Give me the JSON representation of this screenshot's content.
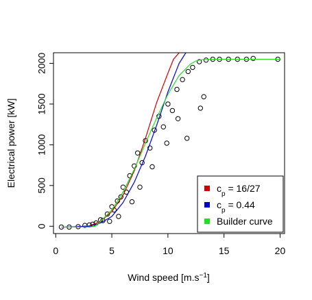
{
  "chart_data": {
    "type": "scatter",
    "xlabel": "Wind speed [m.s",
    "xlabel_superscript": "−1",
    "xlabel_suffix": "]",
    "ylabel": "Electrical power [kW]",
    "xlim": [
      -0.2,
      20.4
    ],
    "ylim": [
      -90,
      2130
    ],
    "x_ticks": [
      0,
      5,
      10,
      15,
      20
    ],
    "y_ticks": [
      0,
      500,
      1000,
      1500,
      2000
    ],
    "grid": false,
    "legend_position": "bottom-right",
    "series": [
      {
        "name": "c_p = 16/27",
        "label_base": "c",
        "label_sub": "p",
        "label_value": " = 16/27",
        "kind": "line",
        "color": "#cc0000",
        "x": [
          0.5,
          1,
          2,
          3,
          4,
          5,
          6,
          7,
          8,
          9,
          10,
          10.5,
          11.0
        ],
        "y": [
          -10,
          -10,
          -5,
          5,
          60,
          180,
          380,
          680,
          1080,
          1520,
          1880,
          2050,
          2130
        ]
      },
      {
        "name": "c_p = 0.44",
        "label_base": "c",
        "label_sub": "p",
        "label_value": " = 0.44",
        "kind": "line",
        "color": "#0000cc",
        "x": [
          0.5,
          1,
          2,
          3,
          4,
          5,
          6,
          7,
          8,
          9,
          10,
          11,
          11.6
        ],
        "y": [
          -10,
          -10,
          -5,
          0,
          40,
          120,
          290,
          540,
          860,
          1240,
          1650,
          2000,
          2130
        ]
      },
      {
        "name": "Builder curve",
        "kind": "line",
        "color": "#22dd22",
        "x": [
          0.5,
          1,
          2,
          3,
          3.5,
          4,
          5,
          6,
          7,
          8,
          9,
          10,
          11,
          12,
          12.5,
          13,
          14,
          15,
          17,
          20
        ],
        "y": [
          -10,
          -10,
          -10,
          -10,
          0,
          60,
          200,
          420,
          700,
          1020,
          1330,
          1620,
          1850,
          1990,
          2030,
          2045,
          2050,
          2050,
          2050,
          2050
        ]
      },
      {
        "name": "",
        "kind": "points",
        "color": "#000000",
        "x": [
          0.5,
          1.2,
          2.0,
          2.6,
          3.0,
          3.3,
          3.6,
          4.0,
          4.2,
          4.6,
          5.0,
          5.2,
          5.5,
          5.8,
          6.0,
          6.3,
          6.6,
          7.0,
          7.3,
          7.7,
          8.0,
          8.4,
          8.8,
          9.2,
          9.6,
          10.0,
          10.4,
          10.8,
          11.3,
          11.8,
          12.2,
          12.8,
          13.4,
          14.0,
          14.6,
          15.4,
          16.2,
          17.0,
          17.6,
          19.8,
          11.7,
          12.9,
          13.2,
          6.8,
          7.5,
          8.6,
          9.9,
          5.6,
          4.8,
          10.9
        ],
        "y": [
          -10,
          -10,
          -5,
          10,
          15,
          25,
          40,
          80,
          70,
          150,
          240,
          200,
          310,
          360,
          480,
          420,
          620,
          740,
          900,
          780,
          1050,
          960,
          1180,
          1350,
          1220,
          1500,
          1420,
          1680,
          1800,
          1900,
          1950,
          2020,
          2040,
          2050,
          2050,
          2050,
          2050,
          2050,
          2060,
          2050,
          1080,
          1450,
          1590,
          300,
          480,
          730,
          1020,
          120,
          60,
          1320
        ]
      }
    ]
  }
}
